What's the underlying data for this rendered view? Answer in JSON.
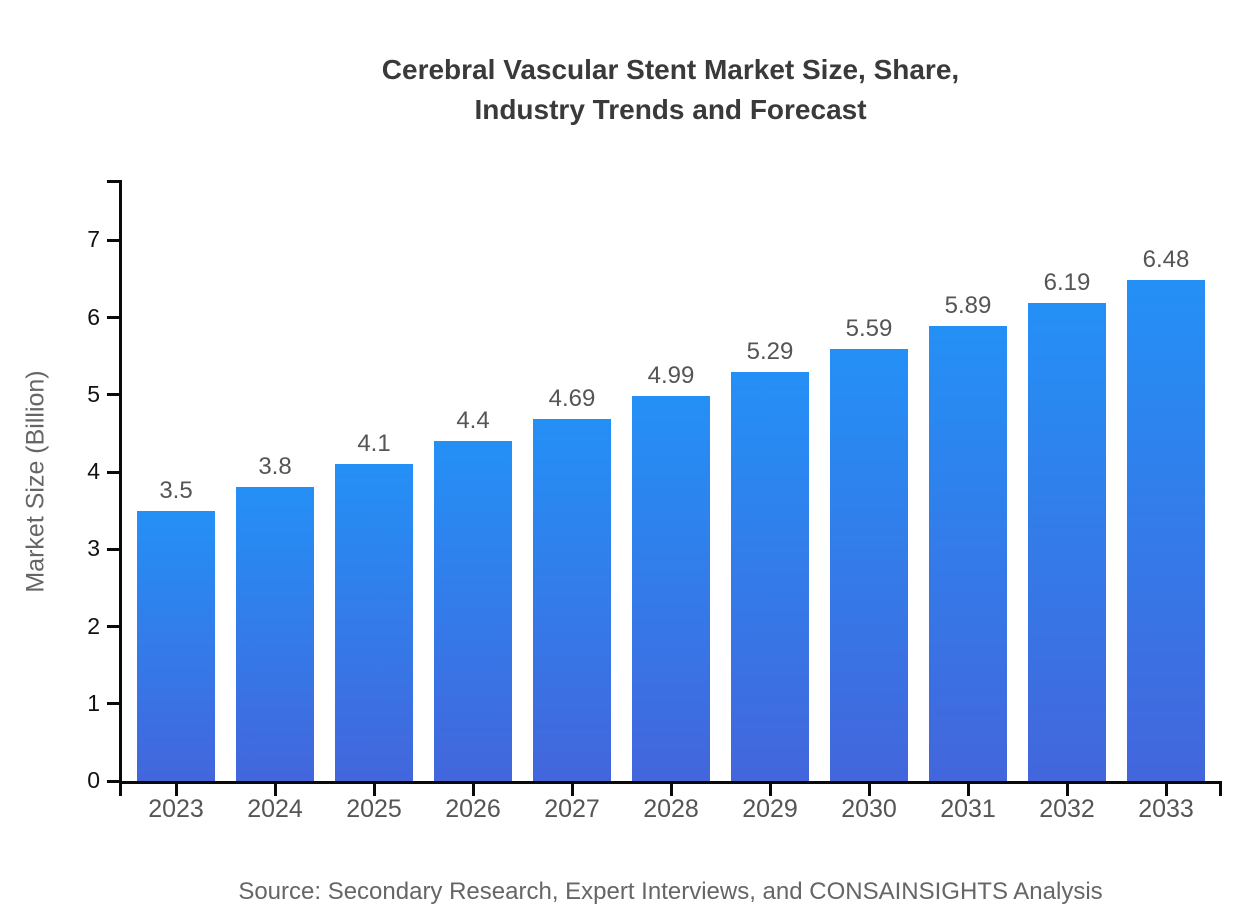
{
  "chart_data": {
    "type": "bar",
    "title": "Cerebral Vascular Stent Market Size, Share,\nIndustry Trends and Forecast",
    "ylabel": "Market Size (Billion)",
    "xlabel": "",
    "categories": [
      "2023",
      "2024",
      "2025",
      "2026",
      "2027",
      "2028",
      "2029",
      "2030",
      "2031",
      "2032",
      "2033"
    ],
    "values": [
      3.5,
      3.8,
      4.1,
      4.4,
      4.69,
      4.99,
      5.29,
      5.59,
      5.89,
      6.19,
      6.48
    ],
    "value_labels": [
      "3.5",
      "3.8",
      "4.1",
      "4.4",
      "4.69",
      "4.99",
      "5.29",
      "5.59",
      "5.89",
      "6.19",
      "6.48"
    ],
    "yticks": [
      0,
      1,
      2,
      3,
      4,
      5,
      6,
      7
    ],
    "ylim": [
      0,
      7.78
    ],
    "grid": false,
    "legend": false,
    "bar_color_top": "#2490f6",
    "bar_color_bottom": "#4366dc",
    "axis_color": "#0a0a0a",
    "label_color": "#555555",
    "source": "Source: Secondary Research, Expert Interviews, and CONSAINSIGHTS Analysis"
  }
}
